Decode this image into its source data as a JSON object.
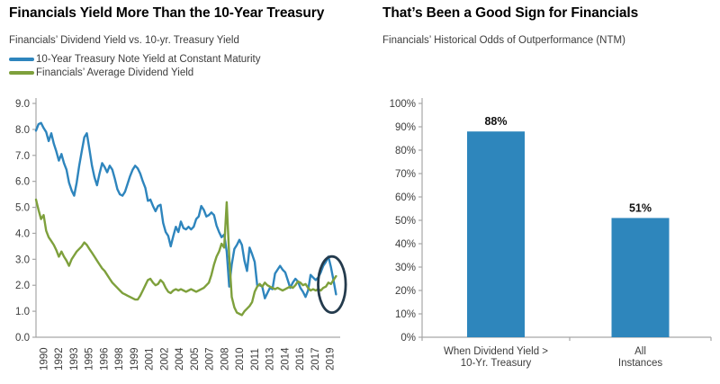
{
  "chart_data": [
    {
      "type": "line",
      "title": "Financials Yield More Than the 10-Year Treasury",
      "subtitle": "Financials’ Dividend Yield vs. 10-yr. Treasury Yield",
      "legend_position": "top-left",
      "ylim": [
        0,
        9
      ],
      "y_tick_labels": [
        "9.0",
        "8.0",
        "7.0",
        "6.0",
        "5.0",
        "4.0",
        "3.0",
        "2.0",
        "1.0",
        "0.0"
      ],
      "x_tick_labels": [
        "1990",
        "1992",
        "1993",
        "1995",
        "1996",
        "1998",
        "1999",
        "2001",
        "2002",
        "2004",
        "2005",
        "2007",
        "2008",
        "2010",
        "2011",
        "2013",
        "2014",
        "2016",
        "2017",
        "2019"
      ],
      "x_start": 1990.0,
      "x_step": 0.25,
      "axis_color": "#a6a6a6",
      "series": [
        {
          "name": "10-Year Treasury Note Yield at Constant Maturity",
          "color": "#2E85BD",
          "values": [
            7.95,
            8.2,
            8.25,
            8.05,
            7.9,
            7.55,
            7.85,
            7.45,
            7.15,
            6.8,
            7.05,
            6.7,
            6.45,
            5.95,
            5.65,
            5.45,
            5.95,
            6.6,
            7.15,
            7.7,
            7.85,
            7.25,
            6.6,
            6.15,
            5.85,
            6.3,
            6.7,
            6.55,
            6.35,
            6.6,
            6.45,
            6.1,
            5.7,
            5.5,
            5.45,
            5.6,
            5.9,
            6.2,
            6.45,
            6.6,
            6.5,
            6.3,
            6.0,
            5.75,
            5.25,
            5.3,
            5.05,
            4.85,
            5.05,
            5.1,
            4.4,
            4.05,
            3.9,
            3.5,
            3.9,
            4.25,
            4.05,
            4.45,
            4.2,
            4.15,
            4.25,
            4.15,
            4.25,
            4.55,
            4.65,
            5.05,
            4.9,
            4.65,
            4.7,
            4.8,
            4.7,
            4.3,
            4.05,
            3.85,
            3.95,
            3.3,
            1.95,
            2.8,
            3.4,
            3.55,
            3.75,
            3.55,
            2.95,
            2.55,
            3.45,
            3.2,
            2.9,
            2.0,
            2.0,
            1.95,
            1.5,
            1.7,
            1.9,
            1.85,
            2.45,
            2.6,
            2.75,
            2.6,
            2.5,
            2.2,
            1.9,
            2.1,
            2.25,
            2.15,
            1.9,
            1.75,
            1.55,
            1.8,
            2.4,
            2.3,
            2.2,
            2.3,
            2.5,
            2.75,
            2.9,
            3.1,
            2.7,
            2.2,
            1.65
          ]
        },
        {
          "name": "Financials’ Average Dividend Yield",
          "color": "#7EA03C",
          "values": [
            5.3,
            4.9,
            4.55,
            4.7,
            4.1,
            3.85,
            3.7,
            3.55,
            3.35,
            3.1,
            3.3,
            3.1,
            2.95,
            2.75,
            3.0,
            3.15,
            3.3,
            3.4,
            3.5,
            3.65,
            3.55,
            3.4,
            3.25,
            3.1,
            2.95,
            2.8,
            2.65,
            2.55,
            2.4,
            2.25,
            2.1,
            2.0,
            1.9,
            1.8,
            1.7,
            1.65,
            1.6,
            1.55,
            1.5,
            1.45,
            1.45,
            1.6,
            1.8,
            2.0,
            2.2,
            2.25,
            2.1,
            2.0,
            2.05,
            2.2,
            2.1,
            1.9,
            1.75,
            1.7,
            1.8,
            1.85,
            1.8,
            1.85,
            1.8,
            1.75,
            1.8,
            1.85,
            1.8,
            1.75,
            1.8,
            1.85,
            1.9,
            2.0,
            2.1,
            2.4,
            2.8,
            3.1,
            3.3,
            3.6,
            3.45,
            5.2,
            3.1,
            1.55,
            1.15,
            0.95,
            0.9,
            0.85,
            1.0,
            1.1,
            1.2,
            1.35,
            1.75,
            1.95,
            2.05,
            1.95,
            2.1,
            2.0,
            1.95,
            1.9,
            1.85,
            1.9,
            1.85,
            1.8,
            1.85,
            1.9,
            1.95,
            1.9,
            2.0,
            2.15,
            2.1,
            2.0,
            2.05,
            1.9,
            1.8,
            1.85,
            1.8,
            1.85,
            1.8,
            1.9,
            1.95,
            2.1,
            2.05,
            2.2,
            2.35
          ]
        }
      ],
      "annotation": {
        "shape": "ellipse",
        "center_year": 2019.1,
        "center_value": 2.03,
        "rx_years": 1.35,
        "ry_units": 1.08,
        "color": "#243B4D"
      }
    },
    {
      "type": "bar",
      "title": "That’s Been a Good Sign for Financials",
      "subtitle": "Financials’ Historical Odds of Outperformance (NTM)",
      "categories": [
        [
          "When Dividend Yield >",
          "10-Yr. Treasury"
        ],
        [
          "All",
          "Instances"
        ]
      ],
      "values": [
        88,
        51
      ],
      "value_labels": [
        "88%",
        "51%"
      ],
      "bar_color": "#2E86BC",
      "ylim": [
        0,
        100
      ],
      "y_tick_labels": [
        "0%",
        "10%",
        "20%",
        "30%",
        "40%",
        "50%",
        "60%",
        "70%",
        "80%",
        "90%",
        "100%"
      ],
      "axis_color": "#a6a6a6"
    }
  ]
}
